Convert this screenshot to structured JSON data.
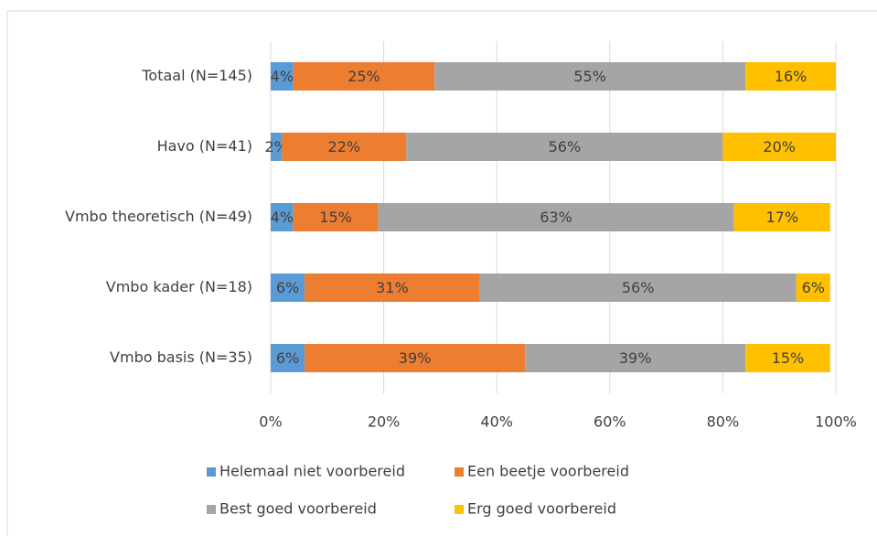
{
  "chart_data": {
    "type": "stacked_bar_horizontal",
    "categories": [
      "Totaal (N=145)",
      "Havo (N=41)",
      "Vmbo theoretisch (N=49)",
      "Vmbo kader (N=18)",
      "Vmbo basis (N=35)"
    ],
    "series": [
      {
        "name": "Helemaal niet voorbereid",
        "color": "#5b9bd5",
        "values": [
          4,
          2,
          4,
          6,
          6
        ],
        "value_labels": [
          "4%",
          "2%",
          "4%",
          "6%",
          "6%"
        ]
      },
      {
        "name": "Een beetje voorbereid",
        "color": "#ed7d31",
        "values": [
          25,
          22,
          15,
          31,
          39
        ],
        "value_labels": [
          "25%",
          "22%",
          "15%",
          "31%",
          "39%"
        ]
      },
      {
        "name": "Best goed voorbereid",
        "color": "#a5a5a5",
        "values": [
          55,
          56,
          63,
          56,
          39
        ],
        "value_labels": [
          "55%",
          "56%",
          "63%",
          "56%",
          "39%"
        ]
      },
      {
        "name": "Erg goed voorbereid",
        "color": "#ffc000",
        "values": [
          16,
          20,
          17,
          6,
          15
        ],
        "value_labels": [
          "16%",
          "20%",
          "17%",
          "6%",
          "15%"
        ]
      }
    ],
    "xlim": [
      0,
      100
    ],
    "xticks": [
      {
        "value": 0,
        "label": "0%"
      },
      {
        "value": 20,
        "label": "20%"
      },
      {
        "value": 40,
        "label": "40%"
      },
      {
        "value": 60,
        "label": "60%"
      },
      {
        "value": 80,
        "label": "80%"
      },
      {
        "value": 100,
        "label": "100%"
      }
    ],
    "grid": true,
    "legend": "bottom"
  }
}
